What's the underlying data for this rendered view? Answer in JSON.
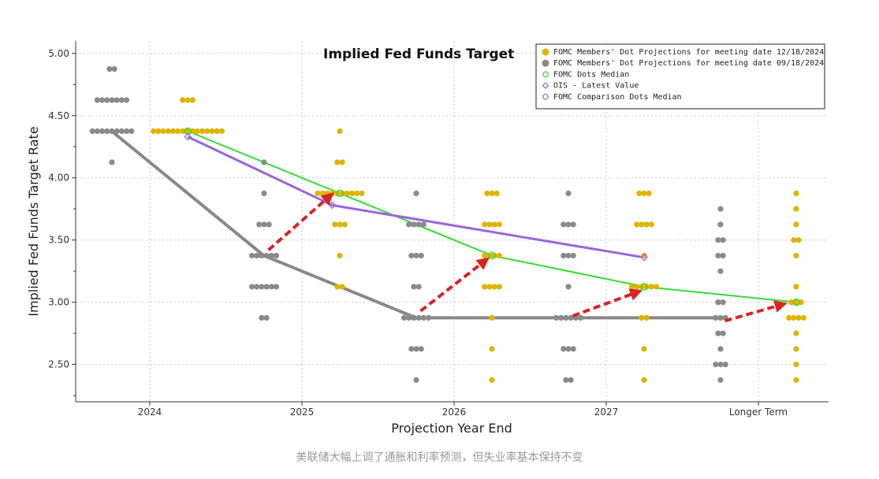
{
  "chart_data": {
    "type": "scatter",
    "title": "Implied Fed Funds Target",
    "xlabel": "Projection Year End",
    "ylabel": "Implied Fed Funds Target Rate",
    "ylim": [
      2.2,
      5.1
    ],
    "yticks": [
      2.5,
      3.0,
      3.5,
      4.0,
      4.5,
      5.0
    ],
    "ytick_labels": [
      "2.50",
      "3.00",
      "3.50",
      "4.00",
      "4.50",
      "5.00"
    ],
    "categories": [
      "2024",
      "2025",
      "2026",
      "2027",
      "Longer Term"
    ],
    "legend": [
      {
        "label": "FOMC Members' Dot Projections for meeting date 12/18/2024",
        "color": "#DDB500",
        "marker": "dot-large"
      },
      {
        "label": "FOMC Members' Dot Projections for meeting date 09/18/2024",
        "color": "#888888",
        "marker": "dot-large"
      },
      {
        "label": "FOMC Dots Median",
        "color": "#33DD33",
        "marker": "circle"
      },
      {
        "label": "OIS - Latest Value",
        "color": "#9966DD",
        "marker": "diamond"
      },
      {
        "label": "FOMC Comparison Dots Median",
        "color": "#888888",
        "marker": "circle"
      }
    ],
    "dots_dec_2024": [
      {
        "category": "2024",
        "levels": [
          [
            4.625,
            3
          ],
          [
            4.375,
            15
          ]
        ]
      },
      {
        "category": "2025",
        "levels": [
          [
            4.375,
            1
          ],
          [
            4.125,
            2
          ],
          [
            3.875,
            10
          ],
          [
            3.625,
            3
          ],
          [
            3.375,
            1
          ],
          [
            3.125,
            2
          ]
        ]
      },
      {
        "category": "2026",
        "levels": [
          [
            3.875,
            3
          ],
          [
            3.625,
            4
          ],
          [
            3.375,
            4
          ],
          [
            3.125,
            4
          ],
          [
            2.875,
            1
          ],
          [
            2.625,
            1
          ],
          [
            2.375,
            1
          ]
        ]
      },
      {
        "category": "2027",
        "levels": [
          [
            3.875,
            3
          ],
          [
            3.625,
            4
          ],
          [
            3.375,
            1
          ],
          [
            3.125,
            6
          ],
          [
            2.875,
            2
          ],
          [
            2.625,
            1
          ],
          [
            2.375,
            1
          ]
        ]
      },
      {
        "category": "Longer Term",
        "levels": [
          [
            3.875,
            1
          ],
          [
            3.75,
            1
          ],
          [
            3.625,
            1
          ],
          [
            3.5,
            2
          ],
          [
            3.375,
            1
          ],
          [
            3.125,
            1
          ],
          [
            3.0,
            3
          ],
          [
            2.875,
            4
          ],
          [
            2.75,
            1
          ],
          [
            2.625,
            1
          ],
          [
            2.5,
            1
          ],
          [
            2.375,
            1
          ]
        ]
      }
    ],
    "dots_sep_2024": [
      {
        "category": "2024",
        "levels": [
          [
            4.875,
            2
          ],
          [
            4.625,
            7
          ],
          [
            4.375,
            9
          ],
          [
            4.125,
            1
          ]
        ]
      },
      {
        "category": "2025",
        "levels": [
          [
            4.125,
            1
          ],
          [
            3.875,
            1
          ],
          [
            3.625,
            3
          ],
          [
            3.375,
            6
          ],
          [
            3.125,
            6
          ],
          [
            2.875,
            2
          ]
        ]
      },
      {
        "category": "2026",
        "levels": [
          [
            3.875,
            1
          ],
          [
            3.625,
            4
          ],
          [
            3.375,
            3
          ],
          [
            3.125,
            2
          ],
          [
            2.875,
            6
          ],
          [
            2.625,
            3
          ],
          [
            2.375,
            1
          ]
        ]
      },
      {
        "category": "2027",
        "levels": [
          [
            3.875,
            1
          ],
          [
            3.625,
            3
          ],
          [
            3.375,
            3
          ],
          [
            3.125,
            1
          ],
          [
            2.875,
            6
          ],
          [
            2.625,
            3
          ],
          [
            2.375,
            2
          ]
        ]
      },
      {
        "category": "Longer Term",
        "levels": [
          [
            3.75,
            1
          ],
          [
            3.625,
            1
          ],
          [
            3.5,
            2
          ],
          [
            3.375,
            2
          ],
          [
            3.25,
            1
          ],
          [
            3.0,
            2
          ],
          [
            2.875,
            3
          ],
          [
            2.75,
            2
          ],
          [
            2.625,
            1
          ],
          [
            2.5,
            3
          ],
          [
            2.375,
            1
          ]
        ]
      }
    ],
    "series": [
      {
        "name": "FOMC Dots Median",
        "color": "#33DD33",
        "points": [
          [
            0.25,
            4.375
          ],
          [
            1.25,
            3.875
          ],
          [
            2.25,
            3.375
          ],
          [
            3.25,
            3.125
          ],
          [
            4.25,
            3.0
          ]
        ]
      },
      {
        "name": "OIS - Latest Value",
        "color": "#9966DD",
        "points": [
          [
            0.25,
            4.33
          ],
          [
            1.2,
            3.78
          ],
          [
            3.25,
            3.36
          ]
        ]
      },
      {
        "name": "FOMC Comparison Dots Median",
        "color": "#888888",
        "points": [
          [
            -0.25,
            4.375
          ],
          [
            0.75,
            3.375
          ],
          [
            1.75,
            2.875
          ],
          [
            2.75,
            2.875
          ],
          [
            3.75,
            2.875
          ]
        ]
      }
    ],
    "annotations": [
      {
        "type": "arrow",
        "color": "#DD2222",
        "from": [
          0.78,
          3.42
        ],
        "to": [
          1.18,
          3.85
        ]
      },
      {
        "type": "arrow",
        "color": "#DD2222",
        "from": [
          1.78,
          2.93
        ],
        "to": [
          2.2,
          3.33
        ]
      },
      {
        "type": "arrow",
        "color": "#DD2222",
        "from": [
          2.78,
          2.89
        ],
        "to": [
          3.2,
          3.08
        ]
      },
      {
        "type": "arrow",
        "color": "#DD2222",
        "from": [
          3.78,
          2.85
        ],
        "to": [
          4.15,
          2.98
        ]
      }
    ]
  },
  "caption": "美联储大幅上调了通胀和利率预测，但失业率基本保持不变"
}
